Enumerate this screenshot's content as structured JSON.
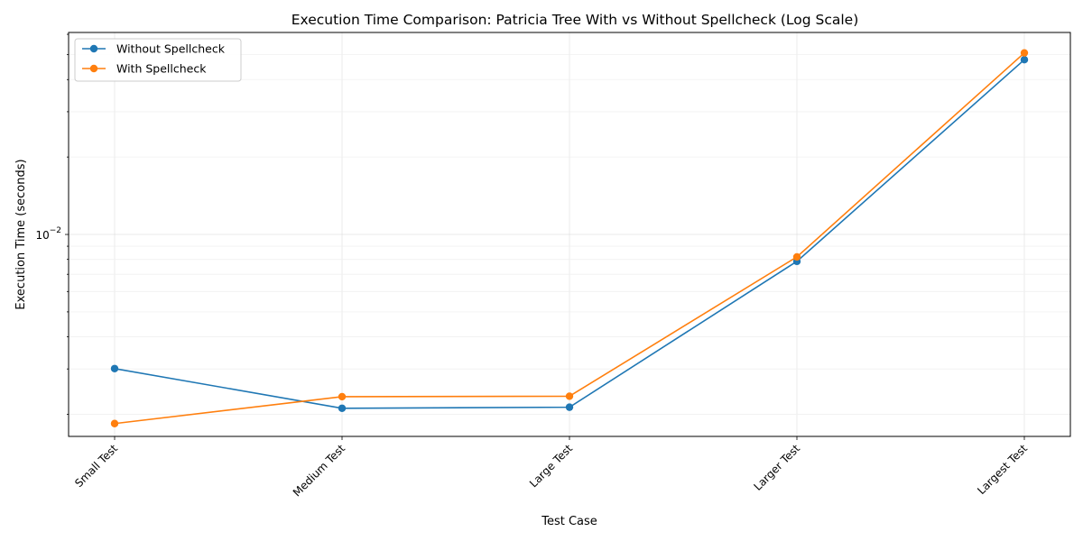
{
  "chart_data": {
    "type": "line",
    "title": "Execution Time Comparison: Patricia Tree With vs Without Spellcheck (Log Scale)",
    "xlabel": "Test Case",
    "ylabel": "Execution Time (seconds)",
    "yscale": "log",
    "ylim": [
      0.00164,
      0.061
    ],
    "y_tick_label": "10",
    "y_tick_exponent": "−2",
    "grid": true,
    "legend_position": "top-left",
    "categories": [
      "Small Test",
      "Medium Test",
      "Large Test",
      "Larger Test",
      "Largest Test"
    ],
    "series": [
      {
        "name": "Without Spellcheck",
        "color": "#1f77b4",
        "values": [
          0.00301,
          0.00211,
          0.00213,
          0.00786,
          0.0478
        ]
      },
      {
        "name": "With Spellcheck",
        "color": "#ff7f0e",
        "values": [
          0.00184,
          0.00234,
          0.00235,
          0.00818,
          0.0508
        ]
      }
    ]
  }
}
